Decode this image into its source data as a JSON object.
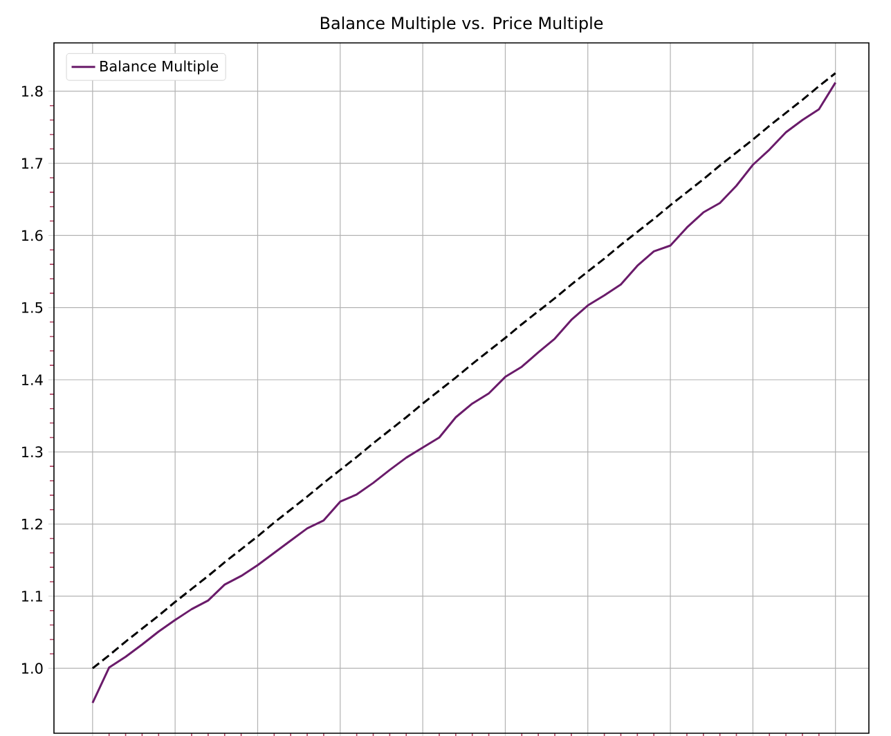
{
  "chart_data": {
    "type": "line",
    "title": "Balance Multiple vs. Price Multiple",
    "categories": [
      null,
      null,
      null,
      null,
      null,
      null,
      null,
      null,
      null,
      null,
      null,
      null,
      null,
      null,
      null,
      null,
      null,
      null,
      null,
      null,
      null,
      null,
      null,
      null,
      null,
      null,
      null,
      null,
      null,
      null,
      null,
      null,
      null,
      null,
      null,
      null,
      null,
      null,
      null,
      null,
      null,
      null,
      null,
      null,
      null,
      null
    ],
    "ylim": [
      0.91,
      1.867
    ],
    "yticks": [
      {
        "value": 1.0,
        "label": "1.0"
      },
      {
        "value": 1.1,
        "label": "1.1"
      },
      {
        "value": 1.2,
        "label": "1.2"
      },
      {
        "value": 1.3,
        "label": "1.3"
      },
      {
        "value": 1.4,
        "label": "1.4"
      },
      {
        "value": 1.5,
        "label": "1.5"
      },
      {
        "value": 1.6,
        "label": "1.6"
      },
      {
        "value": 1.7,
        "label": "1.7"
      },
      {
        "value": 1.8,
        "label": "1.8"
      }
    ],
    "grid": true,
    "legend": "top left",
    "series": [
      {
        "name": "Balance Multiple",
        "color": "#6a1b6a",
        "line_style": "solid",
        "values": [
          0.952,
          1.001,
          1.016,
          1.033,
          1.051,
          1.067,
          1.082,
          1.094,
          1.116,
          1.128,
          1.143,
          1.16,
          1.177,
          1.194,
          1.205,
          1.231,
          1.241,
          1.257,
          1.275,
          1.292,
          1.306,
          1.32,
          1.348,
          1.367,
          1.381,
          1.404,
          1.418,
          1.438,
          1.457,
          1.483,
          1.503,
          1.517,
          1.532,
          1.558,
          1.578,
          1.586,
          1.611,
          1.632,
          1.645,
          1.669,
          1.698,
          1.719,
          1.743,
          1.76,
          1.775,
          1.812
        ]
      },
      {
        "color": "#000000",
        "line_style": "dashed",
        "values": [
          1.0,
          1.018,
          1.037,
          1.055,
          1.073,
          1.092,
          1.11,
          1.128,
          1.147,
          1.165,
          1.183,
          1.202,
          1.22,
          1.238,
          1.257,
          1.275,
          1.293,
          1.312,
          1.33,
          1.348,
          1.367,
          1.385,
          1.403,
          1.422,
          1.44,
          1.458,
          1.477,
          1.495,
          1.513,
          1.532,
          1.55,
          1.568,
          1.587,
          1.605,
          1.623,
          1.642,
          1.66,
          1.678,
          1.697,
          1.715,
          1.733,
          1.752,
          1.77,
          1.788,
          1.807,
          1.825
        ]
      }
    ]
  }
}
